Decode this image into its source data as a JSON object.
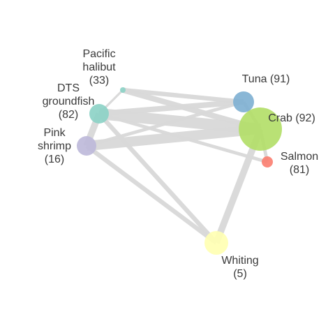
{
  "network": {
    "nodes": [
      {
        "id": "tuna",
        "name": "Tuna",
        "count": "(91)",
        "label_lines": [
          "Tuna (91)"
        ],
        "color": "#80B1D3"
      },
      {
        "id": "crab",
        "name": "Crab",
        "count": "(92)",
        "label_lines": [
          "Crab (92)"
        ],
        "color": "#B3DE69"
      },
      {
        "id": "salmon",
        "name": "Salmon",
        "count": "(81)",
        "label_lines": [
          "Salmon",
          "(81)"
        ],
        "color": "#FB8072"
      },
      {
        "id": "whiting",
        "name": "Whiting",
        "count": "(5)",
        "label_lines": [
          "Whiting",
          "(5)"
        ],
        "color": "#FFFFB3"
      },
      {
        "id": "pink-shrimp",
        "name": "Pink shrimp",
        "count": "(16)",
        "label_lines": [
          "Pink",
          "shrimp",
          "(16)"
        ],
        "color": "#BEBADA"
      },
      {
        "id": "dts-groundfish",
        "name": "DTS groundfish",
        "count": "(82)",
        "label_lines": [
          "DTS",
          "groundfish",
          "(82)"
        ],
        "color": "#8DD3C7"
      },
      {
        "id": "pacific-halibut",
        "name": "Pacific halibut",
        "count": "(33)",
        "label_lines": [
          "Pacific",
          "halibut",
          "(33)"
        ],
        "color": "#8DD3C7"
      }
    ],
    "edges": [
      {
        "source": "dts-groundfish",
        "target": "crab",
        "weight": 10
      },
      {
        "source": "pink-shrimp",
        "target": "crab",
        "weight": 9
      },
      {
        "source": "dts-groundfish",
        "target": "tuna",
        "weight": 5
      },
      {
        "source": "pacific-halibut",
        "target": "crab",
        "weight": 5
      },
      {
        "source": "pacific-halibut",
        "target": "tuna",
        "weight": 4
      },
      {
        "source": "whiting",
        "target": "crab",
        "weight": 6
      },
      {
        "source": "whiting",
        "target": "pink-shrimp",
        "weight": 4
      },
      {
        "source": "whiting",
        "target": "dts-groundfish",
        "weight": 4
      },
      {
        "source": "dts-groundfish",
        "target": "pink-shrimp",
        "weight": 6
      },
      {
        "source": "pink-shrimp",
        "target": "tuna",
        "weight": 3
      },
      {
        "source": "dts-groundfish",
        "target": "salmon",
        "weight": 3
      },
      {
        "source": "crab",
        "target": "salmon",
        "weight": 3
      },
      {
        "source": "crab",
        "target": "tuna",
        "weight": 3
      },
      {
        "source": "pacific-halibut",
        "target": "dts-groundfish",
        "weight": 2
      }
    ],
    "edge_color": "#D9D9D9"
  }
}
